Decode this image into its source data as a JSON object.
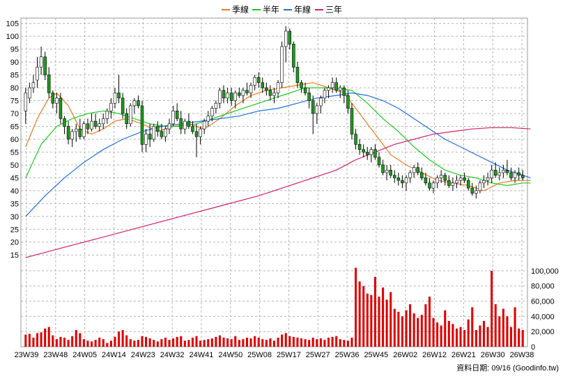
{
  "legend": [
    {
      "label": "季線",
      "color": "#e87a1e"
    },
    {
      "label": "半年",
      "color": "#1ec81e"
    },
    {
      "label": "年線",
      "color": "#1e6ee0"
    },
    {
      "label": "三年",
      "color": "#d21e6e"
    }
  ],
  "source_label": "資料日期: 09/16  (Goodinfo.tw)",
  "chart_data": {
    "type": "candlestick+volume",
    "price_axis": {
      "ylim": [
        11,
        106
      ],
      "ticks": [
        15,
        20,
        25,
        30,
        35,
        40,
        45,
        50,
        55,
        60,
        65,
        70,
        75,
        80,
        85,
        90,
        95,
        100,
        105
      ]
    },
    "volume_axis": {
      "ylim": [
        0,
        110000
      ],
      "ticks": [
        0,
        20000,
        40000,
        60000,
        80000,
        100000
      ],
      "tick_labels": [
        "0",
        "20,000",
        "40,000",
        "60,000",
        "80,000",
        "100,000"
      ]
    },
    "x_tick_labels": [
      "23W39",
      "23W48",
      "24W05",
      "24W14",
      "24W23",
      "24W32",
      "24W41",
      "24W50",
      "25W08",
      "25W17",
      "25W27",
      "25W36",
      "25W45",
      "26W02",
      "26W12",
      "26W21",
      "26W30",
      "26W38"
    ],
    "candles": [
      [
        71,
        80,
        66,
        78,
        16000
      ],
      [
        76,
        82,
        74,
        80,
        17000
      ],
      [
        80,
        85,
        78,
        82,
        12000
      ],
      [
        83,
        92,
        80,
        88,
        18000
      ],
      [
        88,
        96,
        85,
        92,
        19000
      ],
      [
        92,
        94,
        83,
        85,
        24000
      ],
      [
        85,
        88,
        76,
        78,
        26000
      ],
      [
        78,
        79,
        72,
        74,
        15000
      ],
      [
        74,
        78,
        70,
        76,
        10000
      ],
      [
        76,
        78,
        66,
        68,
        13000
      ],
      [
        68,
        69,
        62,
        65,
        12000
      ],
      [
        65,
        67,
        58,
        60,
        9000
      ],
      [
        60,
        64,
        57,
        63,
        14000
      ],
      [
        63,
        66,
        59,
        64,
        22000
      ],
      [
        64,
        68,
        60,
        61,
        18000
      ],
      [
        61,
        67,
        60,
        66,
        10000
      ],
      [
        66,
        68,
        62,
        64,
        8000
      ],
      [
        64,
        70,
        63,
        67,
        7000
      ],
      [
        67,
        70,
        64,
        65,
        9000
      ],
      [
        65,
        68,
        63,
        66,
        12000
      ],
      [
        66,
        70,
        64,
        68,
        10000
      ],
      [
        68,
        72,
        66,
        71,
        5000
      ],
      [
        71,
        76,
        68,
        74,
        8000
      ],
      [
        74,
        80,
        72,
        78,
        13000
      ],
      [
        78,
        85,
        74,
        76,
        20000
      ],
      [
        76,
        78,
        68,
        70,
        22000
      ],
      [
        70,
        72,
        64,
        66,
        15000
      ],
      [
        66,
        74,
        65,
        73,
        10000
      ],
      [
        73,
        76,
        70,
        75,
        8000
      ],
      [
        75,
        77,
        72,
        73,
        9000
      ],
      [
        73,
        75,
        55,
        58,
        14000
      ],
      [
        58,
        64,
        55,
        62,
        13000
      ],
      [
        62,
        66,
        57,
        60,
        11000
      ],
      [
        60,
        66,
        59,
        65,
        9000
      ],
      [
        65,
        67,
        61,
        63,
        7000
      ],
      [
        63,
        66,
        60,
        61,
        10000
      ],
      [
        61,
        65,
        59,
        64,
        12000
      ],
      [
        64,
        68,
        62,
        66,
        9000
      ],
      [
        66,
        73,
        65,
        71,
        11000
      ],
      [
        71,
        74,
        67,
        68,
        13000
      ],
      [
        68,
        71,
        62,
        64,
        14000
      ],
      [
        64,
        68,
        62,
        67,
        8000
      ],
      [
        67,
        70,
        64,
        65,
        9000
      ],
      [
        65,
        67,
        62,
        63,
        12000
      ],
      [
        63,
        66,
        53,
        61,
        14000
      ],
      [
        61,
        65,
        58,
        64,
        8000
      ],
      [
        64,
        68,
        62,
        67,
        9000
      ],
      [
        67,
        71,
        65,
        69,
        10000
      ],
      [
        69,
        73,
        67,
        72,
        11000
      ],
      [
        72,
        75,
        70,
        74,
        13000
      ],
      [
        74,
        80,
        72,
        79,
        15000
      ],
      [
        79,
        81,
        74,
        76,
        12000
      ],
      [
        76,
        80,
        74,
        78,
        11000
      ],
      [
        78,
        80,
        73,
        75,
        10000
      ],
      [
        75,
        79,
        72,
        78,
        14000
      ],
      [
        78,
        80,
        76,
        77,
        9000
      ],
      [
        77,
        80,
        74,
        79,
        10000
      ],
      [
        79,
        82,
        77,
        78,
        12000
      ],
      [
        78,
        82,
        76,
        81,
        11000
      ],
      [
        81,
        85,
        79,
        84,
        14000
      ],
      [
        84,
        86,
        80,
        82,
        12000
      ],
      [
        82,
        84,
        78,
        80,
        10000
      ],
      [
        80,
        82,
        77,
        79,
        9000
      ],
      [
        79,
        81,
        75,
        77,
        11000
      ],
      [
        77,
        80,
        74,
        78,
        8000
      ],
      [
        78,
        83,
        76,
        82,
        12000
      ],
      [
        82,
        98,
        80,
        96,
        16000
      ],
      [
        96,
        104,
        90,
        102,
        18000
      ],
      [
        102,
        103,
        95,
        97,
        14000
      ],
      [
        97,
        98,
        86,
        88,
        13000
      ],
      [
        88,
        90,
        80,
        82,
        12000
      ],
      [
        82,
        83,
        78,
        80,
        11000
      ],
      [
        80,
        82,
        77,
        78,
        10000
      ],
      [
        78,
        80,
        72,
        75,
        9000
      ],
      [
        75,
        77,
        62,
        70,
        12000
      ],
      [
        70,
        74,
        66,
        73,
        10000
      ],
      [
        73,
        77,
        70,
        76,
        11000
      ],
      [
        76,
        80,
        74,
        79,
        9000
      ],
      [
        79,
        81,
        76,
        80,
        12000
      ],
      [
        80,
        84,
        78,
        82,
        13000
      ],
      [
        82,
        84,
        78,
        79,
        14000
      ],
      [
        79,
        81,
        76,
        80,
        10000
      ],
      [
        80,
        81,
        74,
        77,
        9000
      ],
      [
        77,
        79,
        70,
        72,
        8000
      ],
      [
        72,
        74,
        60,
        62,
        12000
      ],
      [
        62,
        64,
        56,
        58,
        104000
      ],
      [
        58,
        60,
        54,
        56,
        86000
      ],
      [
        56,
        58,
        53,
        55,
        80000
      ],
      [
        55,
        57,
        52,
        54,
        70000
      ],
      [
        54,
        57,
        51,
        56,
        68000
      ],
      [
        56,
        58,
        52,
        53,
        92000
      ],
      [
        53,
        55,
        49,
        50,
        66000
      ],
      [
        50,
        52,
        46,
        47,
        78000
      ],
      [
        47,
        50,
        44,
        48,
        62000
      ],
      [
        48,
        50,
        45,
        46,
        72000
      ],
      [
        46,
        48,
        43,
        45,
        50000
      ],
      [
        45,
        47,
        42,
        44,
        46000
      ],
      [
        44,
        46,
        41,
        43,
        40000
      ],
      [
        43,
        46,
        40,
        45,
        48000
      ],
      [
        45,
        48,
        43,
        47,
        56000
      ],
      [
        47,
        50,
        45,
        49,
        44000
      ],
      [
        49,
        51,
        46,
        47,
        38000
      ],
      [
        47,
        49,
        44,
        45,
        42000
      ],
      [
        45,
        47,
        42,
        43,
        56000
      ],
      [
        43,
        45,
        40,
        41,
        66000
      ],
      [
        41,
        44,
        39,
        43,
        38000
      ],
      [
        43,
        46,
        41,
        45,
        32000
      ],
      [
        45,
        48,
        43,
        46,
        28000
      ],
      [
        46,
        47,
        42,
        44,
        48000
      ],
      [
        44,
        46,
        41,
        42,
        34000
      ],
      [
        42,
        45,
        40,
        43,
        30000
      ],
      [
        43,
        46,
        41,
        44,
        24000
      ],
      [
        44,
        46,
        42,
        45,
        26000
      ],
      [
        45,
        47,
        43,
        44,
        22000
      ],
      [
        44,
        45,
        40,
        41,
        36000
      ],
      [
        41,
        43,
        38,
        39,
        52000
      ],
      [
        39,
        42,
        37,
        40,
        22000
      ],
      [
        40,
        44,
        39,
        43,
        28000
      ],
      [
        43,
        46,
        41,
        44,
        34000
      ],
      [
        44,
        47,
        42,
        45,
        26000
      ],
      [
        45,
        50,
        43,
        48,
        100000
      ],
      [
        48,
        51,
        45,
        46,
        56000
      ],
      [
        46,
        49,
        44,
        47,
        40000
      ],
      [
        47,
        50,
        45,
        48,
        50000
      ],
      [
        48,
        52,
        46,
        47,
        40000
      ],
      [
        47,
        49,
        44,
        45,
        26000
      ],
      [
        45,
        48,
        43,
        47,
        52000
      ],
      [
        47,
        49,
        44,
        46,
        24000
      ],
      [
        46,
        48,
        44,
        45,
        22000
      ]
    ],
    "ma_series": [
      {
        "name": "季線",
        "color": "#e87a1e",
        "points": [
          [
            0,
            57
          ],
          [
            3,
            68
          ],
          [
            6,
            76
          ],
          [
            8,
            78
          ],
          [
            11,
            73
          ],
          [
            14,
            64
          ],
          [
            17,
            62
          ],
          [
            20,
            64
          ],
          [
            23,
            67
          ],
          [
            26,
            68
          ],
          [
            30,
            66
          ],
          [
            34,
            63
          ],
          [
            38,
            65
          ],
          [
            42,
            66
          ],
          [
            46,
            64
          ],
          [
            50,
            68
          ],
          [
            54,
            73
          ],
          [
            58,
            77
          ],
          [
            62,
            79
          ],
          [
            66,
            80
          ],
          [
            70,
            81
          ],
          [
            74,
            82
          ],
          [
            78,
            80
          ],
          [
            82,
            78
          ],
          [
            86,
            70
          ],
          [
            90,
            62
          ],
          [
            94,
            54
          ],
          [
            98,
            50
          ],
          [
            102,
            47
          ],
          [
            106,
            44
          ],
          [
            110,
            43
          ],
          [
            114,
            42
          ],
          [
            118,
            40
          ],
          [
            122,
            43
          ],
          [
            126,
            44
          ],
          [
            130,
            44
          ]
        ]
      },
      {
        "name": "半年",
        "color": "#1ec81e",
        "points": [
          [
            0,
            45
          ],
          [
            4,
            58
          ],
          [
            8,
            65
          ],
          [
            12,
            68
          ],
          [
            16,
            70
          ],
          [
            20,
            71
          ],
          [
            24,
            70
          ],
          [
            28,
            68
          ],
          [
            32,
            66
          ],
          [
            36,
            65
          ],
          [
            40,
            65
          ],
          [
            44,
            66
          ],
          [
            48,
            68
          ],
          [
            52,
            70
          ],
          [
            56,
            72
          ],
          [
            60,
            74
          ],
          [
            64,
            76
          ],
          [
            68,
            78
          ],
          [
            72,
            80
          ],
          [
            76,
            80
          ],
          [
            80,
            80
          ],
          [
            84,
            79
          ],
          [
            88,
            74
          ],
          [
            92,
            68
          ],
          [
            96,
            63
          ],
          [
            100,
            57
          ],
          [
            104,
            52
          ],
          [
            108,
            48
          ],
          [
            112,
            46
          ],
          [
            116,
            45
          ],
          [
            120,
            43
          ],
          [
            124,
            42
          ],
          [
            128,
            43
          ],
          [
            130,
            43
          ]
        ]
      },
      {
        "name": "年線",
        "color": "#1e6ee0",
        "points": [
          [
            0,
            30
          ],
          [
            5,
            38
          ],
          [
            10,
            45
          ],
          [
            15,
            51
          ],
          [
            20,
            56
          ],
          [
            25,
            60
          ],
          [
            30,
            63
          ],
          [
            35,
            65
          ],
          [
            40,
            66
          ],
          [
            45,
            67
          ],
          [
            50,
            68
          ],
          [
            55,
            69
          ],
          [
            60,
            71
          ],
          [
            65,
            72
          ],
          [
            70,
            74
          ],
          [
            75,
            76
          ],
          [
            80,
            77
          ],
          [
            84,
            78
          ],
          [
            88,
            77
          ],
          [
            92,
            75
          ],
          [
            96,
            72
          ],
          [
            100,
            68
          ],
          [
            104,
            64
          ],
          [
            108,
            60
          ],
          [
            112,
            57
          ],
          [
            116,
            54
          ],
          [
            120,
            51
          ],
          [
            124,
            48
          ],
          [
            128,
            46
          ],
          [
            130,
            45
          ]
        ]
      },
      {
        "name": "三年",
        "color": "#d21e6e",
        "points": [
          [
            0,
            14
          ],
          [
            10,
            18
          ],
          [
            20,
            22
          ],
          [
            30,
            26
          ],
          [
            40,
            30
          ],
          [
            50,
            34
          ],
          [
            60,
            38
          ],
          [
            70,
            43
          ],
          [
            80,
            48
          ],
          [
            85,
            52
          ],
          [
            90,
            55
          ],
          [
            95,
            58
          ],
          [
            100,
            60
          ],
          [
            105,
            62
          ],
          [
            110,
            63
          ],
          [
            115,
            64
          ],
          [
            120,
            64.5
          ],
          [
            125,
            64.5
          ],
          [
            130,
            64
          ]
        ]
      }
    ]
  }
}
